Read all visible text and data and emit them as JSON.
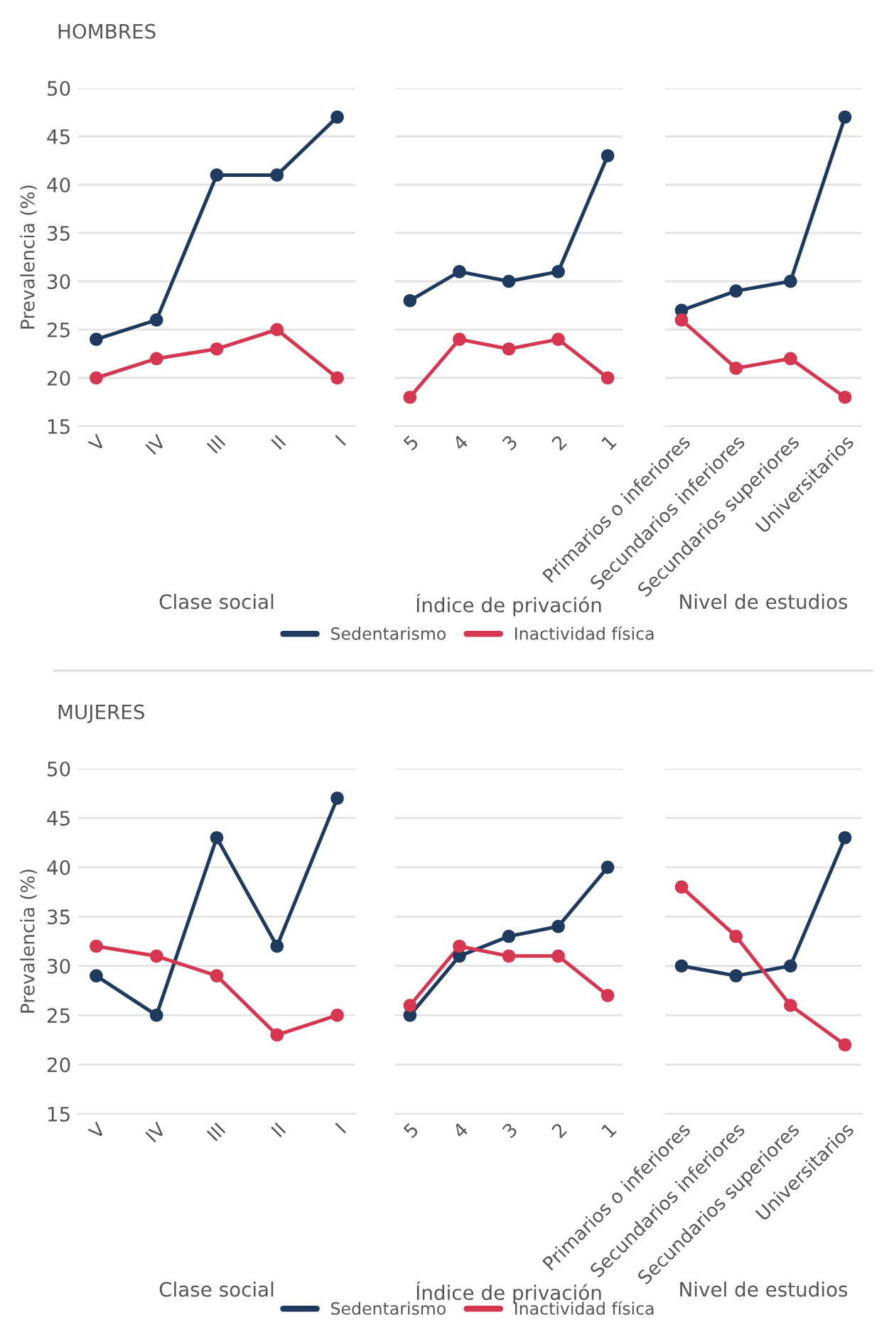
{
  "chart_data": [
    {
      "type": "line",
      "title": "HOMBRES",
      "ylabel": "Prevalencia (%)",
      "xlabel": "Clase social",
      "categories": [
        "V",
        "IV",
        "III",
        "II",
        "I"
      ],
      "ylim": [
        15,
        50
      ],
      "yticks": [
        15,
        20,
        25,
        30,
        35,
        40,
        45,
        50
      ],
      "grid": "y",
      "marker": "circle",
      "line_style": "solid",
      "legend": "bottom",
      "series": [
        {
          "name": "Sedentarismo",
          "color": "#1f3a5f",
          "values": [
            24,
            26,
            41,
            41,
            47
          ]
        },
        {
          "name": "Inactividad física",
          "color": "#d6364f",
          "values": [
            20,
            22,
            23,
            25,
            20
          ]
        }
      ]
    },
    {
      "type": "line",
      "xlabel": "Índice de privación",
      "categories": [
        "5",
        "4",
        "3",
        "2",
        "1"
      ],
      "ylim": [
        15,
        50
      ],
      "yticks": [
        15,
        20,
        25,
        30,
        35,
        40,
        45,
        50
      ],
      "tick_labels": "x",
      "grid": "y",
      "marker": "circle",
      "line_style": "solid",
      "series": [
        {
          "color": "#1f3a5f",
          "values": [
            28,
            31,
            30,
            31,
            43
          ]
        },
        {
          "color": "#d6364f",
          "values": [
            18,
            24,
            23,
            24,
            20
          ]
        }
      ]
    },
    {
      "type": "line",
      "xlabel": "Nivel de estudios",
      "categories": [
        "Primarios o inferiores",
        "Secundarios inferiores",
        "Secundarios superiores",
        "Universitarios"
      ],
      "ylim": [
        15,
        50
      ],
      "yticks": [
        15,
        20,
        25,
        30,
        35,
        40,
        45,
        50
      ],
      "tick_labels": "x",
      "grid": "y",
      "marker": "circle",
      "line_style": "solid",
      "series": [
        {
          "color": "#1f3a5f",
          "values": [
            27,
            29,
            30,
            47
          ]
        },
        {
          "color": "#d6364f",
          "values": [
            26,
            21,
            22,
            18
          ]
        }
      ]
    },
    {
      "type": "line",
      "title": "MUJERES",
      "ylabel": "Prevalencia (%)",
      "xlabel": "Clase social",
      "categories": [
        "V",
        "IV",
        "III",
        "II",
        "I"
      ],
      "ylim": [
        15,
        50
      ],
      "yticks": [
        15,
        20,
        25,
        30,
        35,
        40,
        45,
        50
      ],
      "grid": "y",
      "marker": "circle",
      "line_style": "solid",
      "legend": "bottom",
      "series": [
        {
          "name": "Sedentarismo",
          "color": "#1f3a5f",
          "values": [
            29,
            25,
            43,
            32,
            47
          ]
        },
        {
          "name": "Inactividad física",
          "color": "#d6364f",
          "values": [
            32,
            31,
            29,
            23,
            25
          ]
        }
      ]
    },
    {
      "type": "line",
      "xlabel": "Índice de privación",
      "categories": [
        "5",
        "4",
        "3",
        "2",
        "1"
      ],
      "ylim": [
        15,
        50
      ],
      "yticks": [
        15,
        20,
        25,
        30,
        35,
        40,
        45,
        50
      ],
      "tick_labels": "x",
      "grid": "y",
      "marker": "circle",
      "line_style": "solid",
      "series": [
        {
          "color": "#1f3a5f",
          "values": [
            25,
            31,
            33,
            34,
            40
          ]
        },
        {
          "color": "#d6364f",
          "values": [
            26,
            32,
            31,
            31,
            27
          ]
        }
      ]
    },
    {
      "type": "line",
      "xlabel": "Nivel de estudios",
      "categories": [
        "Primarios o inferiores",
        "Secundarios inferiores",
        "Secundarios superiores",
        "Universitarios"
      ],
      "ylim": [
        15,
        50
      ],
      "yticks": [
        15,
        20,
        25,
        30,
        35,
        40,
        45,
        50
      ],
      "tick_labels": "x",
      "grid": "y",
      "marker": "circle",
      "line_style": "solid",
      "series": [
        {
          "color": "#1f3a5f",
          "values": [
            30,
            29,
            30,
            43
          ]
        },
        {
          "color": "#d6364f",
          "values": [
            38,
            33,
            26,
            22
          ]
        }
      ]
    }
  ]
}
